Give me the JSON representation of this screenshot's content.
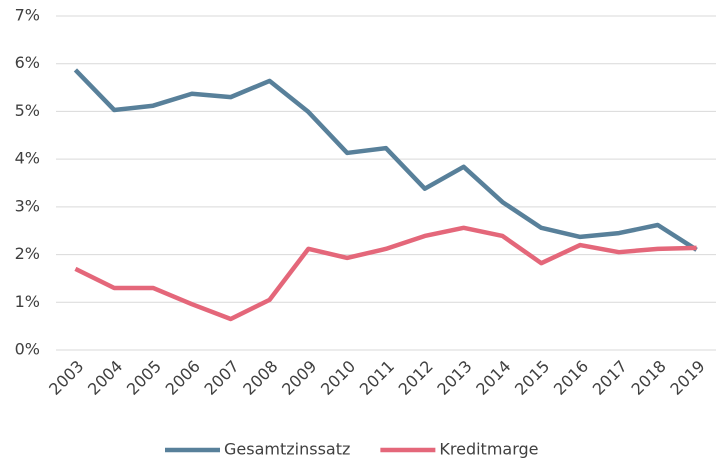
{
  "chart_data": {
    "type": "line",
    "categories": [
      "2003",
      "2004",
      "2005",
      "2006",
      "2007",
      "2008",
      "2009",
      "2010",
      "2011",
      "2012",
      "2013",
      "2014",
      "2015",
      "2016",
      "2017",
      "2018",
      "2019"
    ],
    "series": [
      {
        "name": "Gesamtzinssatz",
        "color": "#58809a",
        "values": [
          5.87,
          5.03,
          5.12,
          5.37,
          5.3,
          5.64,
          4.99,
          4.13,
          4.23,
          3.38,
          3.84,
          3.1,
          2.56,
          2.37,
          2.45,
          2.62,
          2.1
        ]
      },
      {
        "name": "Kreditmarge",
        "color": "#e4677a",
        "values": [
          1.7,
          1.3,
          1.3,
          0.96,
          0.65,
          1.05,
          2.12,
          1.93,
          2.12,
          2.39,
          2.56,
          2.39,
          1.82,
          2.2,
          2.05,
          2.12,
          2.14
        ]
      }
    ],
    "ylim": [
      0,
      7
    ],
    "yticks": [
      {
        "value": 0,
        "label": "0%"
      },
      {
        "value": 1,
        "label": "1%"
      },
      {
        "value": 2,
        "label": "2%"
      },
      {
        "value": 3,
        "label": "3%"
      },
      {
        "value": 4,
        "label": "4%"
      },
      {
        "value": 5,
        "label": "5%"
      },
      {
        "value": 6,
        "label": "6%"
      },
      {
        "value": 7,
        "label": "7%"
      }
    ],
    "grid": true,
    "legend": "bottom"
  }
}
